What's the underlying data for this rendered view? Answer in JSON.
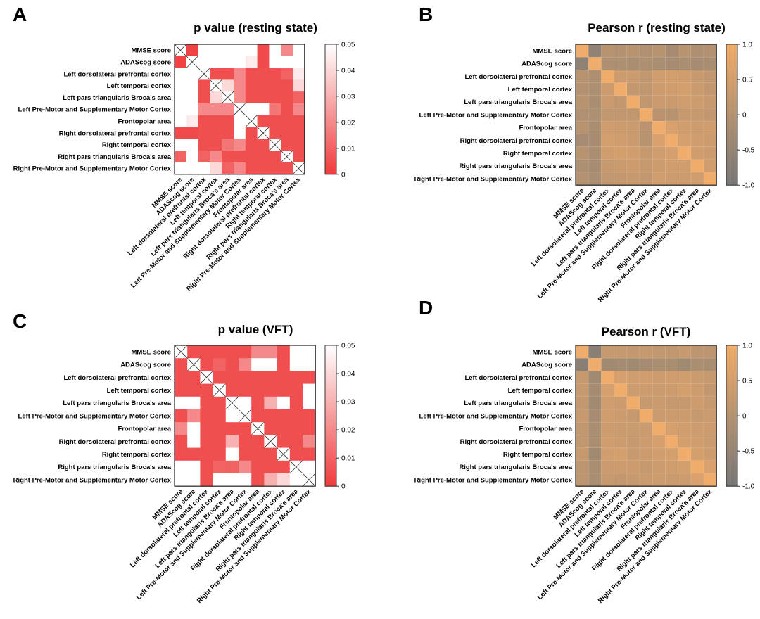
{
  "chart_data": [
    {
      "panel": "A",
      "type": "heatmap",
      "title": "p value (resting state)",
      "labels": [
        "MMSE score",
        "ADAScog score",
        "Left dorsolateral prefrontal cortex",
        "Left temporal cortex",
        "Left pars triangularis Broca's area",
        "Left Pre-Motor and Supplementary Motor Cortex",
        "Frontopolar area",
        "Right dorsolateral prefrontal cortex",
        "Right temporal cortex",
        "Right pars triangularis Broca's area",
        "Right Pre-Motor and Supplementary Motor Cortex"
      ],
      "color_range": [
        0,
        0.05
      ],
      "colorbar_ticks": [
        "0.05",
        "0.04",
        "0.03",
        "0.02",
        "0.01",
        "0"
      ],
      "colorbar_tick_values": [
        0.05,
        0.04,
        0.03,
        0.02,
        0.01,
        0
      ],
      "colormap": [
        "#ee3b3b",
        "#ffffff"
      ],
      "diagonal": "cross",
      "values": [
        [
          null,
          0.002,
          0.05,
          0.05,
          0.05,
          0.05,
          0.05,
          0.004,
          0.05,
          0.02,
          0.05
        ],
        [
          0.002,
          null,
          0.05,
          0.05,
          0.05,
          0.05,
          0.045,
          0.004,
          0.05,
          0.05,
          0.05
        ],
        [
          0.05,
          0.05,
          null,
          0.005,
          0.005,
          0.02,
          0.005,
          0.005,
          0.005,
          0.01,
          0.045
        ],
        [
          0.05,
          0.05,
          0.005,
          null,
          0.04,
          0.02,
          0.005,
          0.005,
          0.005,
          0.005,
          0.04
        ],
        [
          0.05,
          0.05,
          0.005,
          0.04,
          null,
          0.02,
          0.005,
          0.005,
          0.005,
          0.005,
          0.01
        ],
        [
          0.05,
          0.05,
          0.02,
          0.02,
          0.02,
          null,
          0.05,
          0.05,
          0.015,
          0.005,
          0.02
        ],
        [
          0.05,
          0.045,
          0.005,
          0.005,
          0.005,
          0.05,
          null,
          0.005,
          0.005,
          0.005,
          0.005
        ],
        [
          0.004,
          0.004,
          0.005,
          0.005,
          0.005,
          0.05,
          0.005,
          null,
          0.005,
          0.005,
          0.005
        ],
        [
          0.05,
          0.05,
          0.005,
          0.005,
          0.015,
          0.02,
          0.005,
          0.005,
          null,
          0.005,
          0.005
        ],
        [
          0.01,
          0.05,
          0.01,
          0.02,
          0.005,
          0.005,
          0.005,
          0.005,
          0.005,
          null,
          0.005
        ],
        [
          0.05,
          0.05,
          0.05,
          0.04,
          0.01,
          0.02,
          0.005,
          0.005,
          0.005,
          0.005,
          null
        ]
      ]
    },
    {
      "panel": "B",
      "type": "heatmap",
      "title": "Pearson r (resting state)",
      "labels": [
        "MMSE score",
        "ADAScog score",
        "Left dorsolateral prefrontal cortex",
        "Left temporal cortex",
        "Left pars triangularis Broca's area",
        "Left Pre-Motor and Supplementary Motor Cortex",
        "Frontopolar area",
        "Right dorsolateral prefrontal cortex",
        "Right temporal cortex",
        "Right pars triangularis Broca's area",
        "Right Pre-Motor and Supplementary Motor Cortex"
      ],
      "color_range": [
        -1,
        1
      ],
      "colorbar_ticks": [
        "1.0",
        "0.5",
        "0",
        "-0.5",
        "-1.0"
      ],
      "colorbar_tick_values": [
        1,
        0.5,
        0,
        -0.5,
        -1
      ],
      "colormap": [
        "#777777",
        "#f0ac6a"
      ],
      "diagonal": "value",
      "values": [
        [
          1.0,
          -0.6,
          0.05,
          0.0,
          0.05,
          -0.05,
          0.05,
          -0.2,
          0.05,
          -0.1,
          0.0
        ],
        [
          -0.6,
          1.0,
          -0.1,
          -0.1,
          -0.15,
          -0.1,
          -0.15,
          -0.2,
          -0.15,
          -0.2,
          -0.15
        ],
        [
          0.05,
          -0.1,
          1.0,
          0.4,
          0.35,
          0.2,
          0.45,
          0.5,
          0.45,
          0.3,
          0.2
        ],
        [
          0.0,
          -0.1,
          0.4,
          1.0,
          0.25,
          0.2,
          0.4,
          0.45,
          0.5,
          0.35,
          0.25
        ],
        [
          0.05,
          -0.15,
          0.35,
          0.25,
          1.0,
          0.2,
          0.35,
          0.35,
          0.45,
          0.4,
          0.3
        ],
        [
          -0.05,
          -0.1,
          0.2,
          0.2,
          0.2,
          1.0,
          0.1,
          0.05,
          0.3,
          0.3,
          0.25
        ],
        [
          0.05,
          -0.15,
          0.45,
          0.4,
          0.35,
          0.1,
          1.0,
          0.6,
          0.45,
          0.4,
          0.45
        ],
        [
          -0.2,
          -0.2,
          0.5,
          0.45,
          0.35,
          0.05,
          0.6,
          1.0,
          0.55,
          0.45,
          0.4
        ],
        [
          0.05,
          -0.15,
          0.45,
          0.5,
          0.45,
          0.3,
          0.45,
          0.55,
          1.0,
          0.45,
          0.4
        ],
        [
          -0.1,
          -0.2,
          0.3,
          0.35,
          0.4,
          0.3,
          0.4,
          0.45,
          0.45,
          1.0,
          0.45
        ],
        [
          0.0,
          -0.15,
          0.2,
          0.25,
          0.3,
          0.25,
          0.45,
          0.4,
          0.4,
          0.45,
          1.0
        ]
      ]
    },
    {
      "panel": "C",
      "type": "heatmap",
      "title": "p value (VFT)",
      "labels": [
        "MMSE score",
        "ADAScog score",
        "Left dorsolateral prefrontal cortex",
        "Left temporal cortex",
        "Left pars triangularis Broca's area",
        "Left Pre-Motor and Supplementary Motor Cortex",
        "Frontopolar area",
        "Right dorsolateral prefrontal cortex",
        "Right temporal cortex",
        "Right pars triangularis Broca's area",
        "Right Pre-Motor and Supplementary Motor Cortex"
      ],
      "color_range": [
        0,
        0.05
      ],
      "colorbar_ticks": [
        "0.05",
        "0.04",
        "0.03",
        "0.02",
        "0.01",
        "0"
      ],
      "colorbar_tick_values": [
        0.05,
        0.04,
        0.03,
        0.02,
        0.01,
        0
      ],
      "colormap": [
        "#ee3b3b",
        "#ffffff"
      ],
      "diagonal": "cross",
      "values": [
        [
          null,
          0.005,
          0.005,
          0.005,
          0.005,
          0.005,
          0.02,
          0.02,
          0.005,
          0.05,
          0.05
        ],
        [
          0.005,
          null,
          0.005,
          0.01,
          0.005,
          0.02,
          0.05,
          0.05,
          0.005,
          0.05,
          0.05
        ],
        [
          0.005,
          0.005,
          null,
          0.005,
          0.005,
          0.005,
          0.005,
          0.005,
          0.005,
          0.005,
          0.005
        ],
        [
          0.005,
          0.005,
          0.005,
          null,
          0.005,
          0.005,
          0.005,
          0.005,
          0.005,
          0.005,
          0.05
        ],
        [
          0.05,
          0.05,
          0.005,
          0.005,
          null,
          0.05,
          0.005,
          0.03,
          0.05,
          0.005,
          0.05
        ],
        [
          0.005,
          0.02,
          0.005,
          0.005,
          0.05,
          null,
          0.005,
          0.005,
          0.005,
          0.005,
          0.005
        ],
        [
          0.02,
          0.05,
          0.005,
          0.005,
          0.005,
          0.005,
          null,
          0.005,
          0.005,
          0.005,
          0.005
        ],
        [
          0.005,
          0.05,
          0.005,
          0.005,
          0.03,
          0.005,
          0.005,
          null,
          0.005,
          0.005,
          0.02
        ],
        [
          0.005,
          0.005,
          0.005,
          0.005,
          0.05,
          0.005,
          0.005,
          0.005,
          null,
          0.005,
          0.005
        ],
        [
          0.05,
          0.05,
          0.005,
          0.01,
          0.01,
          0.02,
          0.005,
          0.005,
          0.005,
          null,
          0.05
        ],
        [
          0.05,
          0.05,
          0.005,
          0.05,
          0.05,
          0.05,
          0.005,
          0.03,
          0.04,
          0.05,
          null
        ]
      ]
    },
    {
      "panel": "D",
      "type": "heatmap",
      "title": "Pearson r (VFT)",
      "labels": [
        "MMSE score",
        "ADAScog score",
        "Left dorsolateral prefrontal cortex",
        "Left temporal cortex",
        "Left pars triangularis Broca's area",
        "Left Pre-Motor and Supplementary Motor Cortex",
        "Frontopolar area",
        "Right dorsolateral prefrontal cortex",
        "Right temporal cortex",
        "Right pars triangularis Broca's area",
        "Right Pre-Motor and Supplementary Motor Cortex"
      ],
      "color_range": [
        -1,
        1
      ],
      "colorbar_ticks": [
        "1.0",
        "0.5",
        "0",
        "-0.5",
        "-1.0"
      ],
      "colorbar_tick_values": [
        1,
        0.5,
        0,
        -0.5,
        -1
      ],
      "colormap": [
        "#777777",
        "#f0ac6a"
      ],
      "diagonal": "value",
      "values": [
        [
          1.0,
          -0.7,
          0.3,
          0.3,
          0.25,
          0.3,
          0.2,
          0.2,
          0.3,
          0.15,
          0.15
        ],
        [
          -0.7,
          1.0,
          -0.3,
          -0.25,
          -0.3,
          -0.2,
          -0.15,
          -0.15,
          -0.3,
          -0.15,
          -0.15
        ],
        [
          0.3,
          -0.3,
          1.0,
          0.55,
          0.45,
          0.45,
          0.4,
          0.45,
          0.45,
          0.35,
          0.3
        ],
        [
          0.3,
          -0.25,
          0.55,
          1.0,
          0.4,
          0.4,
          0.35,
          0.4,
          0.5,
          0.4,
          0.25
        ],
        [
          0.25,
          -0.3,
          0.45,
          0.4,
          1.0,
          0.3,
          0.35,
          0.3,
          0.3,
          0.4,
          0.3
        ],
        [
          0.3,
          -0.2,
          0.45,
          0.4,
          0.3,
          1.0,
          0.35,
          0.4,
          0.4,
          0.3,
          0.35
        ],
        [
          0.2,
          -0.15,
          0.4,
          0.35,
          0.35,
          0.35,
          1.0,
          0.55,
          0.45,
          0.4,
          0.4
        ],
        [
          0.2,
          -0.15,
          0.45,
          0.4,
          0.3,
          0.4,
          0.55,
          1.0,
          0.5,
          0.45,
          0.35
        ],
        [
          0.3,
          -0.3,
          0.45,
          0.5,
          0.3,
          0.4,
          0.45,
          0.5,
          1.0,
          0.5,
          0.4
        ],
        [
          0.15,
          -0.15,
          0.35,
          0.4,
          0.4,
          0.3,
          0.4,
          0.45,
          0.5,
          1.0,
          0.6
        ],
        [
          0.15,
          -0.15,
          0.3,
          0.25,
          0.3,
          0.35,
          0.4,
          0.35,
          0.4,
          0.6,
          1.0
        ]
      ]
    }
  ]
}
